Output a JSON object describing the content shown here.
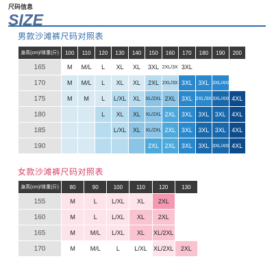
{
  "header": {
    "label": "尺码信息",
    "title": "SIZE"
  },
  "men_table": {
    "title": "男款沙滩裤尺码对照表",
    "corner": "身高(cm)/体重(斤)",
    "weights": [
      "100",
      "110",
      "120",
      "130",
      "140",
      "150",
      "160",
      "170",
      "180",
      "190",
      "200"
    ],
    "rows": [
      {
        "height": "165",
        "cells": [
          {
            "v": "M",
            "c": "w"
          },
          {
            "v": "M/L",
            "c": "w"
          },
          {
            "v": "L",
            "c": "w"
          },
          {
            "v": "XL",
            "c": "w"
          },
          {
            "v": "XL",
            "c": "w"
          },
          {
            "v": "3XL",
            "c": "w"
          },
          {
            "v": "2XL/3XL",
            "c": "w",
            "s": 1
          },
          {
            "v": "3XL",
            "c": "w"
          },
          {
            "v": "",
            "c": "e"
          },
          {
            "v": "",
            "c": "e"
          },
          {
            "v": "",
            "c": "e"
          }
        ]
      },
      {
        "height": "170",
        "cells": [
          {
            "v": "M",
            "c": "b1"
          },
          {
            "v": "M/L",
            "c": "b1"
          },
          {
            "v": "L",
            "c": "b1"
          },
          {
            "v": "XL",
            "c": "b1"
          },
          {
            "v": "XL",
            "c": "b1"
          },
          {
            "v": "2XL",
            "c": "b2"
          },
          {
            "v": "2XL/3XL",
            "c": "b2",
            "s": 1
          },
          {
            "v": "3XL",
            "c": "b5"
          },
          {
            "v": "3XL",
            "c": "b5"
          },
          {
            "v": "3XL/4XL",
            "c": "b5",
            "s": 1
          },
          {
            "v": "",
            "c": "e"
          }
        ]
      },
      {
        "height": "175",
        "cells": [
          {
            "v": "M",
            "c": "b1"
          },
          {
            "v": "M",
            "c": "b1"
          },
          {
            "v": "L",
            "c": "b1"
          },
          {
            "v": "L/XL",
            "c": "b2"
          },
          {
            "v": "XL",
            "c": "b2"
          },
          {
            "v": "XL/2XL",
            "c": "b3",
            "s": 1
          },
          {
            "v": "2XL",
            "c": "b3"
          },
          {
            "v": "3XL",
            "c": "b5"
          },
          {
            "v": "2XL/3XL",
            "c": "b5",
            "s": 1
          },
          {
            "v": "3XL/4XL",
            "c": "b6",
            "s": 1
          },
          {
            "v": "4XL",
            "c": "b7"
          }
        ]
      },
      {
        "height": "180",
        "cells": [
          {
            "v": "",
            "c": "b1"
          },
          {
            "v": "",
            "c": "b1"
          },
          {
            "v": "L",
            "c": "b2"
          },
          {
            "v": "XL",
            "c": "b2"
          },
          {
            "v": "XL",
            "c": "b3"
          },
          {
            "v": "XL/2XL",
            "c": "b3",
            "s": 1
          },
          {
            "v": "2XL",
            "c": "b4"
          },
          {
            "v": "3XL",
            "c": "b5"
          },
          {
            "v": "3XL",
            "c": "b6"
          },
          {
            "v": "3XL",
            "c": "b6"
          },
          {
            "v": "4XL",
            "c": "b7"
          }
        ]
      },
      {
        "height": "185",
        "cells": [
          {
            "v": "",
            "c": "b1"
          },
          {
            "v": "",
            "c": "b1"
          },
          {
            "v": "",
            "c": "b2"
          },
          {
            "v": "L/XL",
            "c": "b2"
          },
          {
            "v": "XL",
            "c": "b3"
          },
          {
            "v": "XL/2XL",
            "c": "b3",
            "s": 1
          },
          {
            "v": "2XL",
            "c": "b4"
          },
          {
            "v": "3XL",
            "c": "b5"
          },
          {
            "v": "3XL",
            "c": "b6"
          },
          {
            "v": "3XL",
            "c": "b6"
          },
          {
            "v": "4XL",
            "c": "b7"
          }
        ]
      },
      {
        "height": "190",
        "cells": [
          {
            "v": "",
            "c": "b1"
          },
          {
            "v": "",
            "c": "b1"
          },
          {
            "v": "",
            "c": "b2"
          },
          {
            "v": "",
            "c": "b2"
          },
          {
            "v": "",
            "c": "b3"
          },
          {
            "v": "2XL",
            "c": "b4"
          },
          {
            "v": "2XL",
            "c": "b4"
          },
          {
            "v": "3XL",
            "c": "b5"
          },
          {
            "v": "3XL",
            "c": "b6"
          },
          {
            "v": "3XL/4XL",
            "c": "b6",
            "s": 1
          },
          {
            "v": "4XL",
            "c": "b7"
          }
        ]
      }
    ]
  },
  "women_table": {
    "title": "女款沙滩裤尺码对照表",
    "corner": "身高(cm)/体重(斤)",
    "weights": [
      "80",
      "90",
      "100",
      "110",
      "120",
      "130"
    ],
    "rows": [
      {
        "height": "155",
        "cells": [
          {
            "v": "M",
            "c": "p1"
          },
          {
            "v": "L",
            "c": "p1"
          },
          {
            "v": "L/XL",
            "c": "p1"
          },
          {
            "v": "XL",
            "c": "p1"
          },
          {
            "v": "2XL",
            "c": "p3"
          },
          {
            "v": "",
            "c": "e"
          }
        ]
      },
      {
        "height": "160",
        "cells": [
          {
            "v": "M",
            "c": "p1"
          },
          {
            "v": "L",
            "c": "p1"
          },
          {
            "v": "L/XL",
            "c": "p1"
          },
          {
            "v": "XL",
            "c": "p2"
          },
          {
            "v": "2XL",
            "c": "p2"
          },
          {
            "v": "",
            "c": "e"
          }
        ]
      },
      {
        "height": "165",
        "cells": [
          {
            "v": "M",
            "c": "p1"
          },
          {
            "v": "M/L",
            "c": "p1"
          },
          {
            "v": "L/XL",
            "c": "p1"
          },
          {
            "v": "XL",
            "c": "p2"
          },
          {
            "v": "XL/2XL",
            "c": "p2"
          },
          {
            "v": "",
            "c": "e"
          }
        ]
      },
      {
        "height": "170",
        "cells": [
          {
            "v": "M",
            "c": "w"
          },
          {
            "v": "M/L",
            "c": "w"
          },
          {
            "v": "L",
            "c": "w"
          },
          {
            "v": "L/XL",
            "c": "w"
          },
          {
            "v": "XL/2XL",
            "c": "p1"
          },
          {
            "v": "2XL",
            "c": "p2"
          }
        ]
      }
    ]
  }
}
